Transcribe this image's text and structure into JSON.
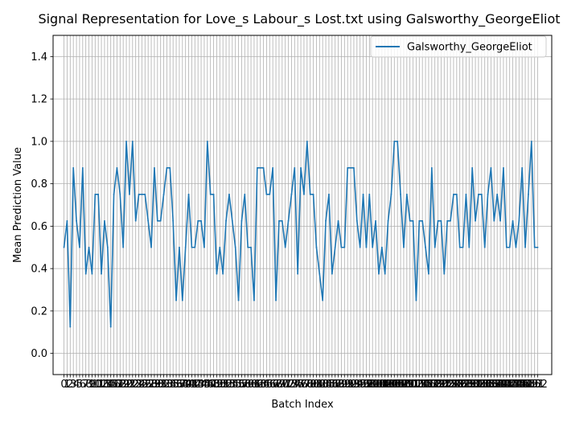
{
  "chart_data": {
    "type": "line",
    "title": "Signal Representation for Love_s Labour_s Lost.txt using Galsworthy_GeorgeEliot",
    "xlabel": "Batch Index",
    "ylabel": "Mean Prediction Value",
    "xlim": [
      -3.5,
      156.5
    ],
    "ylim": [
      -0.1,
      1.5
    ],
    "yticks": [
      0.0,
      0.2,
      0.4,
      0.6,
      0.8,
      1.0,
      1.2,
      1.4
    ],
    "grid": true,
    "legend_position": "top-right",
    "series": [
      {
        "name": "Galsworthy_GeorgeEliot",
        "color": "#1f77b4",
        "values": [
          0.5,
          0.625,
          0.125,
          0.875,
          0.625,
          0.5,
          0.875,
          0.375,
          0.5,
          0.375,
          0.75,
          0.75,
          0.375,
          0.625,
          0.5,
          0.125,
          0.75,
          0.875,
          0.75,
          0.5,
          1.0,
          0.75,
          1.0,
          0.625,
          0.75,
          0.75,
          0.75,
          0.625,
          0.5,
          0.875,
          0.625,
          0.625,
          0.75,
          0.875,
          0.875,
          0.625,
          0.25,
          0.5,
          0.25,
          0.5,
          0.75,
          0.5,
          0.5,
          0.625,
          0.625,
          0.5,
          1.0,
          0.75,
          0.75,
          0.375,
          0.5,
          0.375,
          0.625,
          0.75,
          0.625,
          0.5,
          0.25,
          0.625,
          0.75,
          0.5,
          0.5,
          0.25,
          0.875,
          0.875,
          0.875,
          0.75,
          0.75,
          0.875,
          0.25,
          0.625,
          0.625,
          0.5,
          0.625,
          0.75,
          0.875,
          0.375,
          0.875,
          0.75,
          1.0,
          0.75,
          0.75,
          0.5,
          0.375,
          0.25,
          0.625,
          0.75,
          0.375,
          0.5,
          0.625,
          0.5,
          0.5,
          0.875,
          0.875,
          0.875,
          0.625,
          0.5,
          0.75,
          0.5,
          0.75,
          0.5,
          0.625,
          0.375,
          0.5,
          0.375,
          0.625,
          0.75,
          1.0,
          1.0,
          0.75,
          0.5,
          0.75,
          0.625,
          0.625,
          0.25,
          0.625,
          0.625,
          0.5,
          0.375,
          0.875,
          0.5,
          0.625,
          0.625,
          0.375,
          0.625,
          0.625,
          0.75,
          0.75,
          0.5,
          0.5,
          0.75,
          0.5,
          0.875,
          0.625,
          0.75,
          0.75,
          0.5,
          0.75,
          0.875,
          0.625,
          0.75,
          0.625,
          0.875,
          0.5,
          0.5,
          0.625,
          0.5,
          0.625,
          0.875,
          0.5,
          0.75,
          1.0,
          0.5,
          0.5
        ]
      }
    ]
  }
}
